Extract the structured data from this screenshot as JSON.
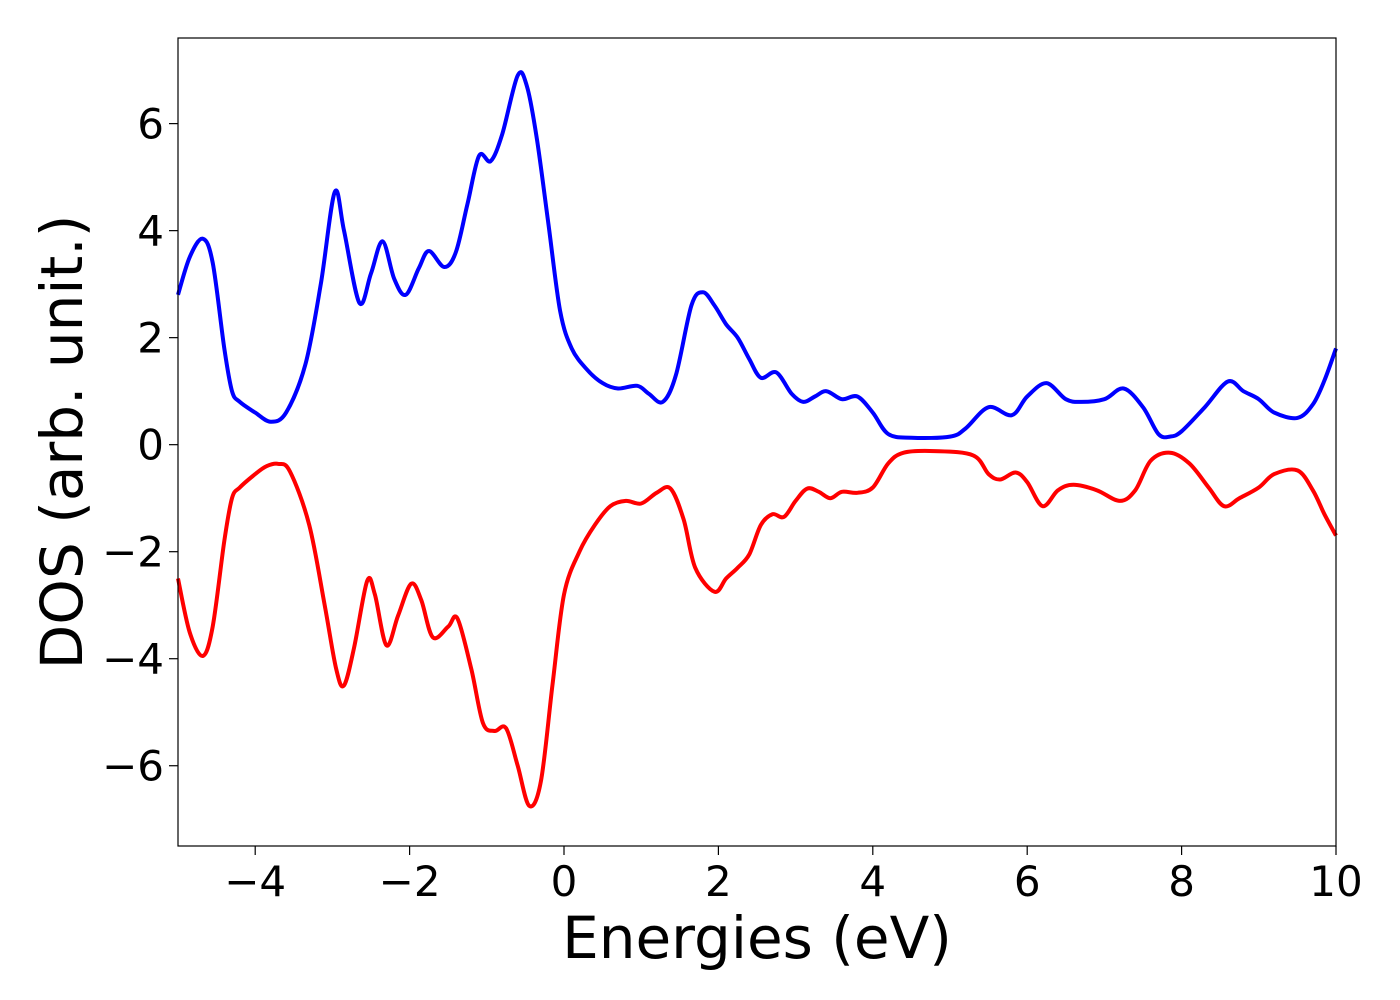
{
  "chart_data": {
    "type": "line",
    "title": "",
    "xlabel": "Energies (eV)",
    "ylabel": "DOS (arb. unit.)",
    "xlim": [
      -5,
      10
    ],
    "ylim": [
      -7.5,
      7.6
    ],
    "xticks": [
      -4,
      -2,
      0,
      2,
      4,
      6,
      8,
      10
    ],
    "xtick_labels": [
      "−4",
      "−2",
      "0",
      "2",
      "4",
      "6",
      "8",
      "10"
    ],
    "yticks": [
      -6,
      -4,
      -2,
      0,
      2,
      4,
      6
    ],
    "ytick_labels": [
      "−6",
      "−4",
      "−2",
      "0",
      "2",
      "4",
      "6"
    ],
    "grid": false,
    "legend": "none",
    "series": [
      {
        "color": "#0000ff",
        "points": [
          [
            -5.0,
            2.8
          ],
          [
            -4.85,
            3.5
          ],
          [
            -4.68,
            3.85
          ],
          [
            -4.55,
            3.4
          ],
          [
            -4.4,
            1.8
          ],
          [
            -4.3,
            1.0
          ],
          [
            -4.2,
            0.8
          ],
          [
            -4.0,
            0.6
          ],
          [
            -3.8,
            0.43
          ],
          [
            -3.6,
            0.6
          ],
          [
            -3.35,
            1.5
          ],
          [
            -3.15,
            3.0
          ],
          [
            -2.97,
            4.72
          ],
          [
            -2.85,
            4.0
          ],
          [
            -2.65,
            2.65
          ],
          [
            -2.5,
            3.2
          ],
          [
            -2.35,
            3.8
          ],
          [
            -2.2,
            3.1
          ],
          [
            -2.05,
            2.8
          ],
          [
            -1.88,
            3.3
          ],
          [
            -1.75,
            3.62
          ],
          [
            -1.55,
            3.32
          ],
          [
            -1.4,
            3.6
          ],
          [
            -1.25,
            4.5
          ],
          [
            -1.1,
            5.4
          ],
          [
            -0.95,
            5.3
          ],
          [
            -0.8,
            5.8
          ],
          [
            -0.6,
            6.9
          ],
          [
            -0.48,
            6.7
          ],
          [
            -0.35,
            5.7
          ],
          [
            -0.2,
            4.1
          ],
          [
            -0.05,
            2.5
          ],
          [
            0.1,
            1.8
          ],
          [
            0.3,
            1.4
          ],
          [
            0.5,
            1.15
          ],
          [
            0.7,
            1.05
          ],
          [
            0.95,
            1.1
          ],
          [
            1.1,
            0.95
          ],
          [
            1.28,
            0.8
          ],
          [
            1.45,
            1.3
          ],
          [
            1.65,
            2.6
          ],
          [
            1.8,
            2.85
          ],
          [
            1.95,
            2.6
          ],
          [
            2.1,
            2.25
          ],
          [
            2.25,
            2.0
          ],
          [
            2.4,
            1.6
          ],
          [
            2.55,
            1.25
          ],
          [
            2.75,
            1.35
          ],
          [
            2.95,
            0.95
          ],
          [
            3.1,
            0.8
          ],
          [
            3.25,
            0.9
          ],
          [
            3.4,
            1.0
          ],
          [
            3.6,
            0.85
          ],
          [
            3.8,
            0.9
          ],
          [
            4.0,
            0.6
          ],
          [
            4.2,
            0.2
          ],
          [
            4.5,
            0.13
          ],
          [
            5.0,
            0.15
          ],
          [
            5.2,
            0.3
          ],
          [
            5.5,
            0.7
          ],
          [
            5.8,
            0.55
          ],
          [
            6.0,
            0.9
          ],
          [
            6.25,
            1.15
          ],
          [
            6.5,
            0.85
          ],
          [
            6.7,
            0.8
          ],
          [
            7.0,
            0.85
          ],
          [
            7.25,
            1.05
          ],
          [
            7.5,
            0.7
          ],
          [
            7.7,
            0.2
          ],
          [
            7.85,
            0.15
          ],
          [
            8.0,
            0.25
          ],
          [
            8.3,
            0.7
          ],
          [
            8.6,
            1.18
          ],
          [
            8.8,
            1.0
          ],
          [
            9.0,
            0.85
          ],
          [
            9.2,
            0.6
          ],
          [
            9.5,
            0.5
          ],
          [
            9.7,
            0.75
          ],
          [
            9.85,
            1.2
          ],
          [
            10.0,
            1.8
          ]
        ]
      },
      {
        "color": "#ff0000",
        "points": [
          [
            -5.0,
            -2.5
          ],
          [
            -4.85,
            -3.5
          ],
          [
            -4.68,
            -3.95
          ],
          [
            -4.55,
            -3.4
          ],
          [
            -4.4,
            -1.8
          ],
          [
            -4.3,
            -1.0
          ],
          [
            -4.2,
            -0.8
          ],
          [
            -4.0,
            -0.55
          ],
          [
            -3.85,
            -0.4
          ],
          [
            -3.7,
            -0.36
          ],
          [
            -3.55,
            -0.5
          ],
          [
            -3.3,
            -1.5
          ],
          [
            -3.1,
            -3.0
          ],
          [
            -2.95,
            -4.2
          ],
          [
            -2.85,
            -4.5
          ],
          [
            -2.72,
            -3.8
          ],
          [
            -2.55,
            -2.55
          ],
          [
            -2.45,
            -2.8
          ],
          [
            -2.3,
            -3.75
          ],
          [
            -2.15,
            -3.2
          ],
          [
            -1.98,
            -2.6
          ],
          [
            -1.85,
            -2.9
          ],
          [
            -1.7,
            -3.6
          ],
          [
            -1.5,
            -3.4
          ],
          [
            -1.38,
            -3.25
          ],
          [
            -1.2,
            -4.2
          ],
          [
            -1.05,
            -5.2
          ],
          [
            -0.9,
            -5.35
          ],
          [
            -0.75,
            -5.3
          ],
          [
            -0.6,
            -6.0
          ],
          [
            -0.45,
            -6.75
          ],
          [
            -0.3,
            -6.3
          ],
          [
            -0.15,
            -4.5
          ],
          [
            0.0,
            -2.8
          ],
          [
            0.2,
            -2.0
          ],
          [
            0.4,
            -1.5
          ],
          [
            0.6,
            -1.15
          ],
          [
            0.8,
            -1.05
          ],
          [
            1.0,
            -1.1
          ],
          [
            1.2,
            -0.9
          ],
          [
            1.38,
            -0.82
          ],
          [
            1.55,
            -1.4
          ],
          [
            1.7,
            -2.3
          ],
          [
            1.95,
            -2.75
          ],
          [
            2.1,
            -2.5
          ],
          [
            2.25,
            -2.3
          ],
          [
            2.4,
            -2.05
          ],
          [
            2.55,
            -1.5
          ],
          [
            2.7,
            -1.3
          ],
          [
            2.85,
            -1.35
          ],
          [
            3.0,
            -1.05
          ],
          [
            3.15,
            -0.82
          ],
          [
            3.3,
            -0.88
          ],
          [
            3.45,
            -1.0
          ],
          [
            3.6,
            -0.88
          ],
          [
            3.8,
            -0.9
          ],
          [
            4.0,
            -0.8
          ],
          [
            4.2,
            -0.35
          ],
          [
            4.4,
            -0.15
          ],
          [
            4.8,
            -0.12
          ],
          [
            5.3,
            -0.2
          ],
          [
            5.5,
            -0.55
          ],
          [
            5.65,
            -0.65
          ],
          [
            5.85,
            -0.52
          ],
          [
            6.0,
            -0.7
          ],
          [
            6.2,
            -1.15
          ],
          [
            6.4,
            -0.85
          ],
          [
            6.6,
            -0.75
          ],
          [
            6.9,
            -0.85
          ],
          [
            7.2,
            -1.05
          ],
          [
            7.4,
            -0.85
          ],
          [
            7.6,
            -0.3
          ],
          [
            7.85,
            -0.15
          ],
          [
            8.1,
            -0.35
          ],
          [
            8.35,
            -0.8
          ],
          [
            8.55,
            -1.15
          ],
          [
            8.75,
            -1.0
          ],
          [
            9.0,
            -0.8
          ],
          [
            9.2,
            -0.55
          ],
          [
            9.5,
            -0.48
          ],
          [
            9.7,
            -0.85
          ],
          [
            9.85,
            -1.3
          ],
          [
            10.0,
            -1.7
          ]
        ]
      }
    ]
  }
}
